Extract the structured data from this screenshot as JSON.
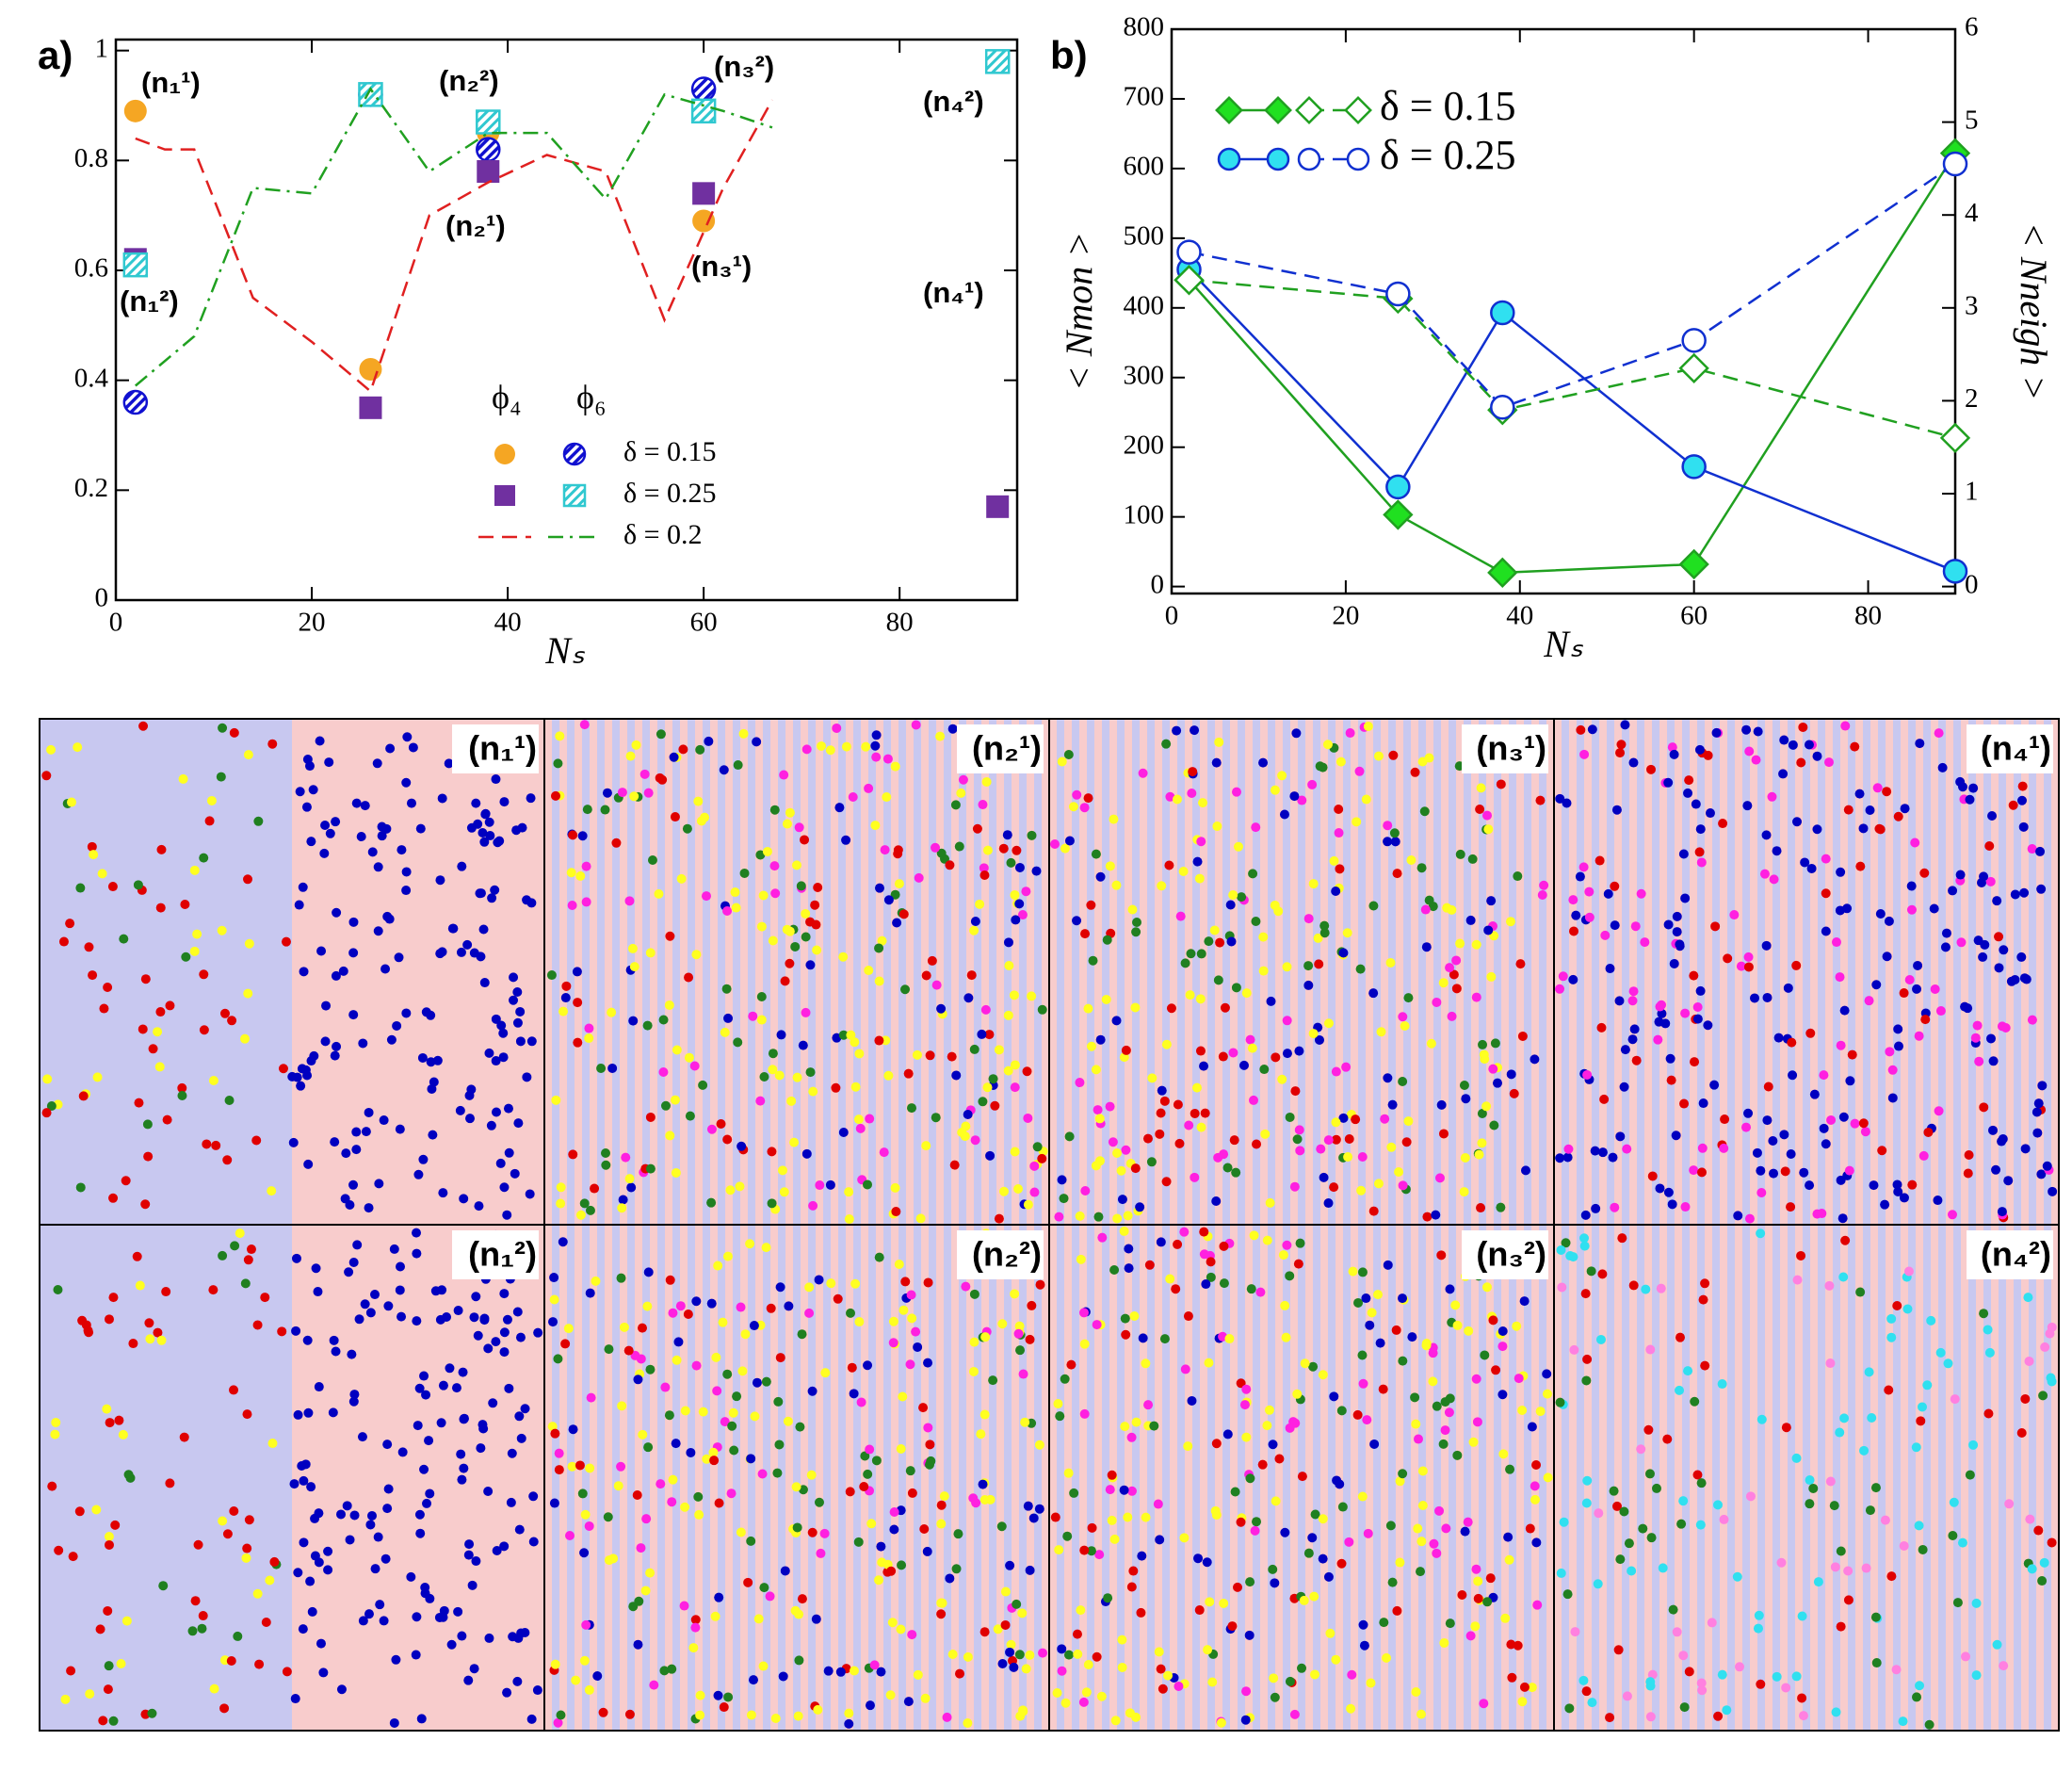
{
  "chart_data": [
    {
      "type": "scatter",
      "panel": "a)",
      "xlabel": "Nₛ",
      "xlim": [
        0,
        92
      ],
      "xticks": [
        0,
        20,
        40,
        60,
        80
      ],
      "ylim": [
        0,
        1.02
      ],
      "yticks": [
        0,
        0.2,
        0.4,
        0.6,
        0.8,
        1
      ],
      "legend_columns": [
        "ϕ₄",
        "ϕ₆"
      ],
      "annotations": [
        "(n₁¹)",
        "(n₁²)",
        "(n₂²)",
        "(n₂¹)",
        "(n₃²)",
        "(n₃¹)",
        "(n₄²)",
        "(n₄¹)"
      ],
      "series": [
        {
          "name": "δ = 0.15",
          "color": "#f5a623",
          "marker": "circle",
          "fill": "solid",
          "x": [
            2,
            26,
            38,
            60
          ],
          "values": [
            0.89,
            0.42,
            0.85,
            0.69
          ]
        },
        {
          "color": "#1010d0",
          "marker": "circle",
          "fill": "hatched",
          "x": [
            2,
            26,
            38,
            60
          ],
          "values": [
            0.36,
            0.92,
            0.82,
            0.93
          ]
        },
        {
          "name": "δ = 0.25",
          "color": "#7030a0",
          "marker": "square",
          "fill": "solid",
          "x": [
            2,
            26,
            38,
            60,
            90
          ],
          "values": [
            0.62,
            0.35,
            0.78,
            0.74,
            0.17
          ]
        },
        {
          "color": "#30c8d0",
          "marker": "square",
          "fill": "hatched",
          "x": [
            2,
            26,
            38,
            60,
            90
          ],
          "values": [
            0.61,
            0.92,
            0.87,
            0.89,
            0.98
          ]
        },
        {
          "name": "δ = 0.2",
          "color": "#e02020",
          "line": "dashed",
          "x": [
            2,
            5,
            8,
            14,
            20,
            26,
            32,
            38,
            44,
            50,
            56,
            62,
            67
          ],
          "values": [
            0.84,
            0.82,
            0.82,
            0.55,
            0.47,
            0.38,
            0.7,
            0.76,
            0.81,
            0.78,
            0.51,
            0.75,
            0.91
          ]
        },
        {
          "color": "#20a020",
          "line": "dashdot",
          "x": [
            2,
            8,
            14,
            20,
            26,
            32,
            38,
            44,
            50,
            56,
            62,
            67
          ],
          "values": [
            0.39,
            0.48,
            0.75,
            0.74,
            0.93,
            0.78,
            0.85,
            0.85,
            0.73,
            0.92,
            0.89,
            0.86
          ]
        }
      ]
    },
    {
      "type": "line",
      "panel": "b)",
      "xlabel": "Nₛ",
      "ylabel": "< Nmon >",
      "y2label": "< Nneigh >",
      "xlim": [
        0,
        90
      ],
      "xticks": [
        0,
        20,
        40,
        60,
        80
      ],
      "ylim": [
        -10,
        800
      ],
      "yticks": [
        0,
        100,
        200,
        300,
        400,
        500,
        600,
        700,
        800
      ],
      "y2lim": [
        -0.075,
        6
      ],
      "y2ticks": [
        0,
        1,
        2,
        3,
        4,
        5,
        6
      ],
      "series": [
        {
          "name": "δ = 0.15",
          "color": "#20a020",
          "marker": "diamond",
          "fill": "solid",
          "markerfill": "#20e020",
          "line": "solid",
          "x": [
            2,
            26,
            38,
            60,
            90
          ],
          "values": [
            440,
            103,
            20,
            32,
            622
          ]
        },
        {
          "name": "δ = 0.25",
          "color": "#1030d0",
          "marker": "circle",
          "fill": "solid",
          "markerfill": "#30e0f0",
          "line": "solid",
          "x": [
            2,
            26,
            38,
            60,
            90
          ],
          "values": [
            455,
            143,
            393,
            172,
            22
          ]
        },
        {
          "color": "#20a020",
          "marker": "diamond",
          "fill": "open",
          "line": "dashed",
          "axis": "y2",
          "x": [
            2,
            26,
            38,
            60,
            90
          ],
          "values": [
            3.3,
            3.1,
            1.9,
            2.35,
            1.6
          ]
        },
        {
          "color": "#1030d0",
          "marker": "circle",
          "fill": "open",
          "line": "dashed",
          "axis": "y2",
          "x": [
            2,
            26,
            38,
            60,
            90
          ],
          "values": [
            3.6,
            3.15,
            1.93,
            2.65,
            4.55
          ]
        }
      ]
    }
  ],
  "snapshots": [
    "(n₁¹)",
    "(n₂¹)",
    "(n₃¹)",
    "(n₄¹)",
    "(n₁²)",
    "(n₂²)",
    "(n₃²)",
    "(n₄²)"
  ]
}
